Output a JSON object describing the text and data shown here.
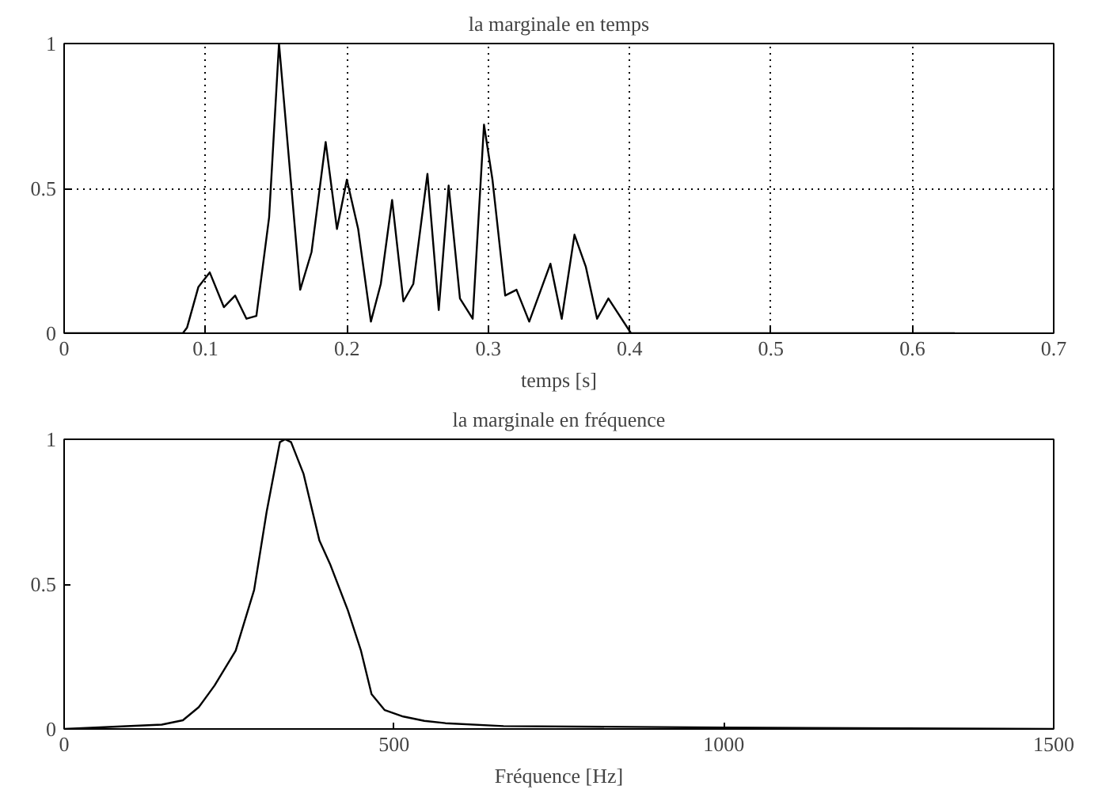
{
  "chart_data": [
    {
      "type": "line",
      "title": "la marginale en temps",
      "xlabel": "temps [s]",
      "x": [
        0,
        0.084,
        0.087,
        0.095,
        0.103,
        0.113,
        0.121,
        0.129,
        0.136,
        0.145,
        0.152,
        0.167,
        0.175,
        0.185,
        0.193,
        0.2,
        0.208,
        0.217,
        0.224,
        0.232,
        0.24,
        0.247,
        0.257,
        0.265,
        0.272,
        0.28,
        0.289,
        0.297,
        0.303,
        0.312,
        0.32,
        0.329,
        0.344,
        0.352,
        0.361,
        0.369,
        0.377,
        0.385,
        0.401,
        0.63
      ],
      "series": [
        {
          "color": "#000000",
          "values": [
            0,
            0,
            0.02,
            0.16,
            0.21,
            0.09,
            0.13,
            0.05,
            0.06,
            0.4,
            1.0,
            0.15,
            0.28,
            0.66,
            0.36,
            0.53,
            0.36,
            0.04,
            0.17,
            0.46,
            0.11,
            0.17,
            0.55,
            0.08,
            0.51,
            0.12,
            0.05,
            0.72,
            0.53,
            0.13,
            0.15,
            0.04,
            0.24,
            0.05,
            0.34,
            0.23,
            0.05,
            0.12,
            0,
            0
          ]
        }
      ],
      "xlim": [
        0,
        0.7
      ],
      "ylim": [
        0,
        1
      ],
      "xticks": [
        0,
        0.1,
        0.2,
        0.3,
        0.4,
        0.5,
        0.6,
        0.7
      ],
      "yticks": [
        0,
        0.5,
        1
      ],
      "grid": true
    },
    {
      "type": "line",
      "title": "la marginale en fréquence",
      "xlabel": "Fréquence [Hz]",
      "x": [
        0,
        148,
        180,
        204,
        228,
        260,
        288,
        307,
        327,
        335,
        344,
        363,
        387,
        403,
        430,
        450,
        466,
        486,
        514,
        546,
        578,
        666,
        1000,
        1500
      ],
      "series": [
        {
          "color": "#000000",
          "values": [
            0,
            0.015,
            0.03,
            0.075,
            0.15,
            0.27,
            0.48,
            0.75,
            0.99,
            1.0,
            0.99,
            0.88,
            0.65,
            0.57,
            0.41,
            0.27,
            0.12,
            0.065,
            0.043,
            0.028,
            0.02,
            0.01,
            0.005,
            0
          ]
        }
      ],
      "xlim": [
        0,
        1500
      ],
      "ylim": [
        0,
        1
      ],
      "xticks": [
        0,
        500,
        1000,
        1500
      ],
      "yticks": [
        0,
        0.5,
        1
      ],
      "grid": false
    }
  ]
}
